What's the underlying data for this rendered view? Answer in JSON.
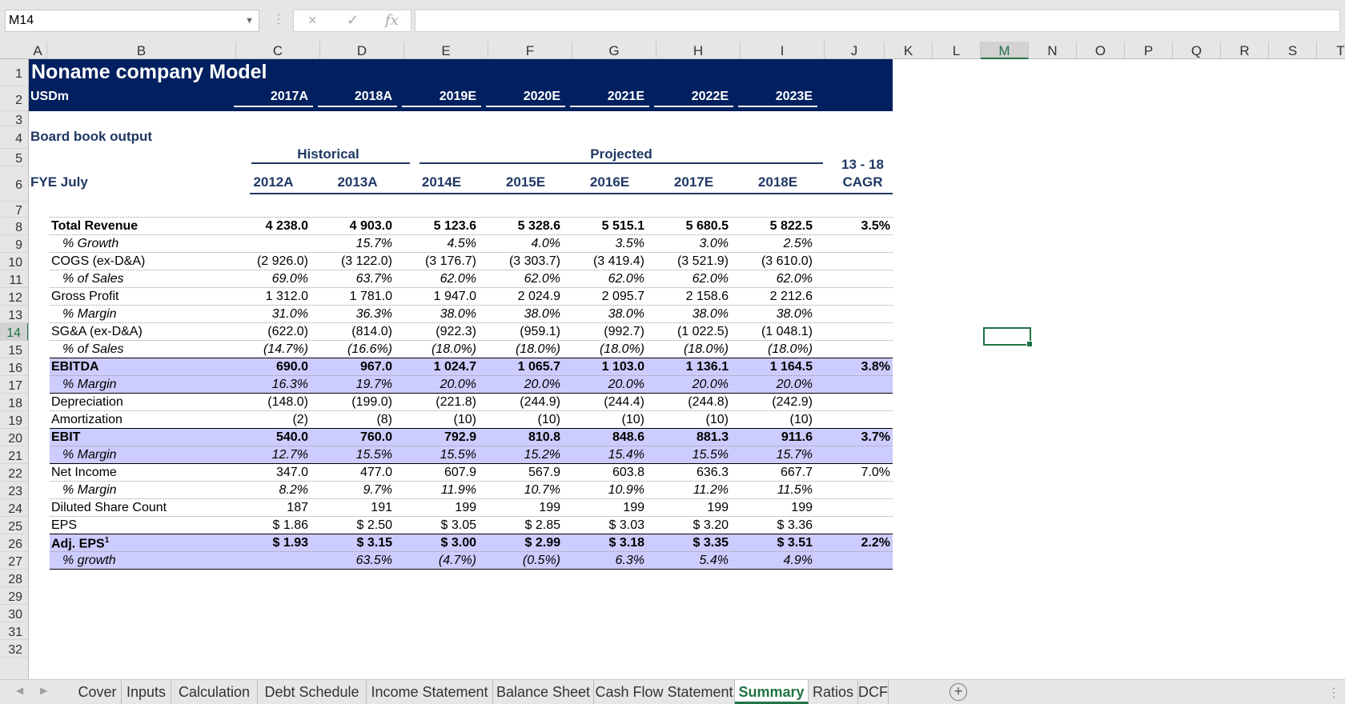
{
  "formula_bar": {
    "name_box": "M14",
    "cancel_icon": "×",
    "enter_icon": "✓",
    "fx_label": "fx",
    "formula": ""
  },
  "columns": [
    "A",
    "B",
    "C",
    "D",
    "E",
    "F",
    "G",
    "H",
    "I",
    "J",
    "K",
    "L",
    "M",
    "N",
    "O",
    "P",
    "Q",
    "R",
    "S",
    "T"
  ],
  "rows": [
    "1",
    "2",
    "3",
    "4",
    "5",
    "6",
    "7",
    "8",
    "9",
    "10",
    "11",
    "12",
    "13",
    "14",
    "15",
    "16",
    "17",
    "18",
    "19",
    "20",
    "21",
    "22",
    "23",
    "24",
    "25",
    "26",
    "27",
    "28",
    "29",
    "30",
    "31",
    "32"
  ],
  "active_cell": {
    "column": "M",
    "row": "14"
  },
  "sheet": {
    "title": "Noname company Model",
    "unit": "USDm",
    "header_years": [
      "2017A",
      "2018A",
      "2019E",
      "2020E",
      "2021E",
      "2022E",
      "2023E"
    ],
    "section": "Board book output",
    "group_historical": "Historical",
    "group_projected": "Projected",
    "fye": "FYE July",
    "years": [
      "2012A",
      "2013A",
      "2014E",
      "2015E",
      "2016E",
      "2017E",
      "2018E"
    ],
    "cagr_line1": "13 - 18",
    "cagr_line2": "CAGR",
    "colors": {
      "header_band": "#002060",
      "highlight": "#ccccff",
      "navy_text": "#1f3864",
      "excel_green": "#217346"
    },
    "table_rows": [
      {
        "label": "Total Revenue",
        "values": [
          "4 238.0",
          "4 903.0",
          "5 123.6",
          "5 328.6",
          "5 515.1",
          "5 680.5",
          "5 822.5"
        ],
        "cagr": "3.5%",
        "bold": true,
        "italic": false,
        "indent": false,
        "highlight": false
      },
      {
        "label": "% Growth",
        "values": [
          "",
          "15.7%",
          "4.5%",
          "4.0%",
          "3.5%",
          "3.0%",
          "2.5%"
        ],
        "cagr": "",
        "bold": false,
        "italic": true,
        "indent": true,
        "highlight": false
      },
      {
        "label": "COGS (ex-D&A)",
        "values": [
          "(2 926.0)",
          "(3 122.0)",
          "(3 176.7)",
          "(3 303.7)",
          "(3 419.4)",
          "(3 521.9)",
          "(3 610.0)"
        ],
        "cagr": "",
        "bold": false,
        "italic": false,
        "indent": false,
        "highlight": false
      },
      {
        "label": "% of Sales",
        "values": [
          "69.0%",
          "63.7%",
          "62.0%",
          "62.0%",
          "62.0%",
          "62.0%",
          "62.0%"
        ],
        "cagr": "",
        "bold": false,
        "italic": true,
        "indent": true,
        "highlight": false
      },
      {
        "label": "Gross Profit",
        "values": [
          "1 312.0",
          "1 781.0",
          "1 947.0",
          "2 024.9",
          "2 095.7",
          "2 158.6",
          "2 212.6"
        ],
        "cagr": "",
        "bold": false,
        "italic": false,
        "indent": false,
        "highlight": false
      },
      {
        "label": "% Margin",
        "values": [
          "31.0%",
          "36.3%",
          "38.0%",
          "38.0%",
          "38.0%",
          "38.0%",
          "38.0%"
        ],
        "cagr": "",
        "bold": false,
        "italic": true,
        "indent": true,
        "highlight": false
      },
      {
        "label": "SG&A (ex-D&A)",
        "values": [
          "(622.0)",
          "(814.0)",
          "(922.3)",
          "(959.1)",
          "(992.7)",
          "(1 022.5)",
          "(1 048.1)"
        ],
        "cagr": "",
        "bold": false,
        "italic": false,
        "indent": false,
        "highlight": false
      },
      {
        "label": "% of Sales",
        "values": [
          "(14.7%)",
          "(16.6%)",
          "(18.0%)",
          "(18.0%)",
          "(18.0%)",
          "(18.0%)",
          "(18.0%)"
        ],
        "cagr": "",
        "bold": false,
        "italic": true,
        "indent": true,
        "highlight": false
      },
      {
        "label": "EBITDA",
        "values": [
          "690.0",
          "967.0",
          "1 024.7",
          "1 065.7",
          "1 103.0",
          "1 136.1",
          "1 164.5"
        ],
        "cagr": "3.8%",
        "bold": true,
        "italic": false,
        "indent": false,
        "highlight": true
      },
      {
        "label": "% Margin",
        "values": [
          "16.3%",
          "19.7%",
          "20.0%",
          "20.0%",
          "20.0%",
          "20.0%",
          "20.0%"
        ],
        "cagr": "",
        "bold": false,
        "italic": true,
        "indent": true,
        "highlight": true
      },
      {
        "label": "Depreciation",
        "values": [
          "(148.0)",
          "(199.0)",
          "(221.8)",
          "(244.9)",
          "(244.4)",
          "(244.8)",
          "(242.9)"
        ],
        "cagr": "",
        "bold": false,
        "italic": false,
        "indent": false,
        "highlight": false
      },
      {
        "label": "Amortization",
        "values": [
          "(2)",
          "(8)",
          "(10)",
          "(10)",
          "(10)",
          "(10)",
          "(10)"
        ],
        "cagr": "",
        "bold": false,
        "italic": false,
        "indent": false,
        "highlight": false
      },
      {
        "label": "EBIT",
        "values": [
          "540.0",
          "760.0",
          "792.9",
          "810.8",
          "848.6",
          "881.3",
          "911.6"
        ],
        "cagr": "3.7%",
        "bold": true,
        "italic": false,
        "indent": false,
        "highlight": true
      },
      {
        "label": "% Margin",
        "values": [
          "12.7%",
          "15.5%",
          "15.5%",
          "15.2%",
          "15.4%",
          "15.5%",
          "15.7%"
        ],
        "cagr": "",
        "bold": false,
        "italic": true,
        "indent": true,
        "highlight": true
      },
      {
        "label": "Net Income",
        "values": [
          "347.0",
          "477.0",
          "607.9",
          "567.9",
          "603.8",
          "636.3",
          "667.7"
        ],
        "cagr": "7.0%",
        "bold": false,
        "italic": false,
        "indent": false,
        "highlight": false
      },
      {
        "label": "% Margin",
        "values": [
          "8.2%",
          "9.7%",
          "11.9%",
          "10.7%",
          "10.9%",
          "11.2%",
          "11.5%"
        ],
        "cagr": "",
        "bold": false,
        "italic": true,
        "indent": true,
        "highlight": false
      },
      {
        "label": "Diluted Share Count",
        "values": [
          "187",
          "191",
          "199",
          "199",
          "199",
          "199",
          "199"
        ],
        "cagr": "",
        "bold": false,
        "italic": false,
        "indent": false,
        "highlight": false
      },
      {
        "label": "EPS",
        "values": [
          "$ 1.86",
          "$ 2.50",
          "$ 3.05",
          "$ 2.85",
          "$ 3.03",
          "$ 3.20",
          "$ 3.36"
        ],
        "cagr": "",
        "bold": false,
        "italic": false,
        "indent": false,
        "highlight": false
      },
      {
        "label": "Adj. EPS",
        "superscript": "1",
        "values": [
          "$ 1.93",
          "$ 3.15",
          "$ 3.00",
          "$ 2.99",
          "$ 3.18",
          "$ 3.35",
          "$ 3.51"
        ],
        "cagr": "2.2%",
        "bold": true,
        "italic": false,
        "indent": false,
        "highlight": true
      },
      {
        "label": "% growth",
        "values": [
          "",
          "63.5%",
          "(4.7%)",
          "(0.5%)",
          "6.3%",
          "5.4%",
          "4.9%"
        ],
        "cagr": "",
        "bold": false,
        "italic": true,
        "indent": true,
        "highlight": true
      }
    ]
  },
  "tabs": [
    "Cover",
    "Inputs",
    "Calculation",
    "Debt Schedule",
    "Income Statement",
    "Balance Sheet",
    "Cash Flow Statement",
    "Summary",
    "Ratios",
    "DCF"
  ],
  "active_tab": "Summary",
  "tab_nav": {
    "prev": "◀",
    "next": "▶",
    "add": "+",
    "more": "⋮"
  }
}
